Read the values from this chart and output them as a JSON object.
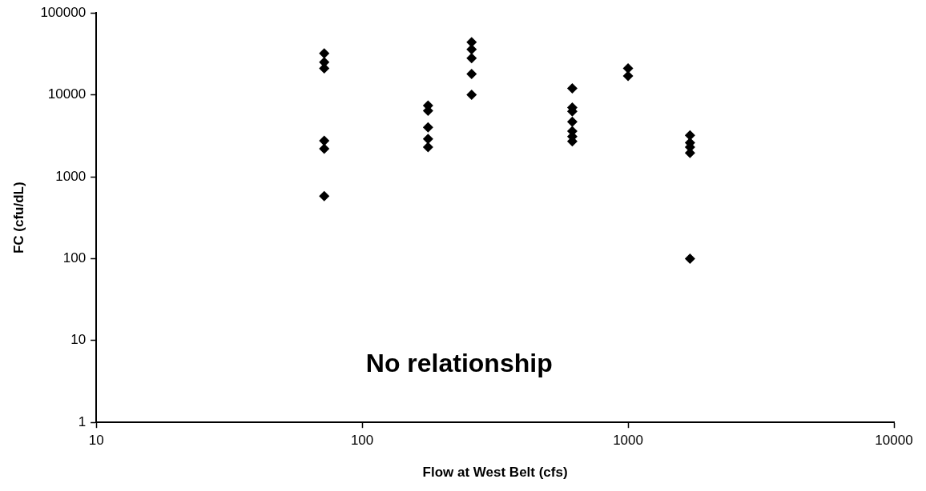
{
  "chart_data": {
    "type": "scatter",
    "xlabel": "Flow at West Belt (cfs)",
    "ylabel": "FC (cfu/dL)",
    "x": [
      72,
      72,
      72,
      72,
      72,
      72,
      177,
      177,
      177,
      177,
      177,
      258,
      258,
      258,
      258,
      258,
      617,
      617,
      617,
      617,
      617,
      617,
      617,
      1000,
      1000,
      1710,
      1710,
      1710,
      1710,
      1710
    ],
    "series": [
      {
        "color": "#000000",
        "values": [
          32000,
          25000,
          21000,
          2750,
          2200,
          580,
          7400,
          6400,
          4000,
          2900,
          2300,
          44000,
          36000,
          28000,
          18000,
          10000,
          12000,
          7000,
          6300,
          4700,
          3600,
          3100,
          2700,
          21000,
          17000,
          3200,
          2600,
          2300,
          1950,
          100
        ]
      }
    ],
    "log": "xy",
    "xlim": [
      10,
      10000
    ],
    "xticks": [
      10,
      100,
      1000,
      10000
    ],
    "ylim": [
      1,
      100000
    ],
    "yticks": [
      1,
      10,
      100,
      1000,
      10000,
      100000
    ],
    "marker": "diamond",
    "grid": false,
    "legend": false,
    "annotations": [
      "No relationship"
    ]
  }
}
